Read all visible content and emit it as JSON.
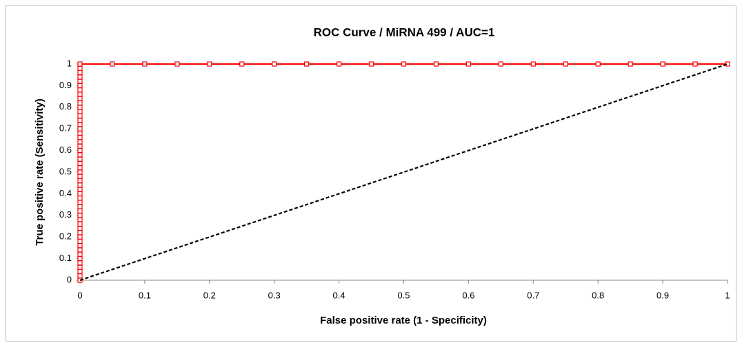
{
  "chart_data": {
    "type": "scatter",
    "title": "ROC Curve / MiRNA 499 / AUC=1",
    "x_label": "False positive rate (1 - Specificity)",
    "y_label": "True positive rate (Sensitivity)",
    "xlim": [
      0,
      1
    ],
    "ylim": [
      0,
      1
    ],
    "xticks": [
      0,
      0.1,
      0.2,
      0.3,
      0.4,
      0.5,
      0.6,
      0.7,
      0.8,
      0.9,
      1
    ],
    "yticks": [
      0,
      0.1,
      0.2,
      0.3,
      0.4,
      0.5,
      0.6,
      0.7,
      0.8,
      0.9,
      1
    ],
    "grid": false,
    "series": [
      {
        "color": "#ff0000",
        "marker": "square",
        "x": [
          0,
          0,
          0,
          0,
          0,
          0,
          0,
          0,
          0,
          0,
          0,
          0,
          0,
          0,
          0,
          0,
          0,
          0,
          0,
          0,
          0,
          0,
          0,
          0,
          0,
          0,
          0,
          0,
          0,
          0,
          0,
          0,
          0,
          0,
          0,
          0,
          0,
          0,
          0,
          0,
          0,
          0,
          0,
          0,
          0,
          0,
          0,
          0,
          0,
          0,
          0,
          0.05,
          0.1,
          0.15,
          0.2,
          0.25,
          0.3,
          0.35,
          0.4,
          0.45,
          0.5,
          0.55,
          0.6,
          0.65,
          0.7,
          0.75,
          0.8,
          0.85,
          0.9,
          0.95,
          1
        ],
        "values": [
          0,
          0.02,
          0.04,
          0.06,
          0.08,
          0.1,
          0.12,
          0.14,
          0.16,
          0.18,
          0.2,
          0.22,
          0.24,
          0.26,
          0.28,
          0.3,
          0.32,
          0.34,
          0.36,
          0.38,
          0.4,
          0.42,
          0.44,
          0.46,
          0.48,
          0.5,
          0.52,
          0.54,
          0.56,
          0.58,
          0.6,
          0.62,
          0.64,
          0.66,
          0.68,
          0.7,
          0.72,
          0.74,
          0.76,
          0.78,
          0.8,
          0.82,
          0.84,
          0.86,
          0.88,
          0.9,
          0.92,
          0.94,
          0.96,
          0.98,
          1,
          1,
          1,
          1,
          1,
          1,
          1,
          1,
          1,
          1,
          1,
          1,
          1,
          1,
          1,
          1,
          1,
          1,
          1,
          1,
          1
        ]
      },
      {
        "color": "#000000",
        "marker": "none",
        "dash": true,
        "x": [
          0,
          1
        ],
        "values": [
          0,
          1
        ]
      }
    ]
  }
}
